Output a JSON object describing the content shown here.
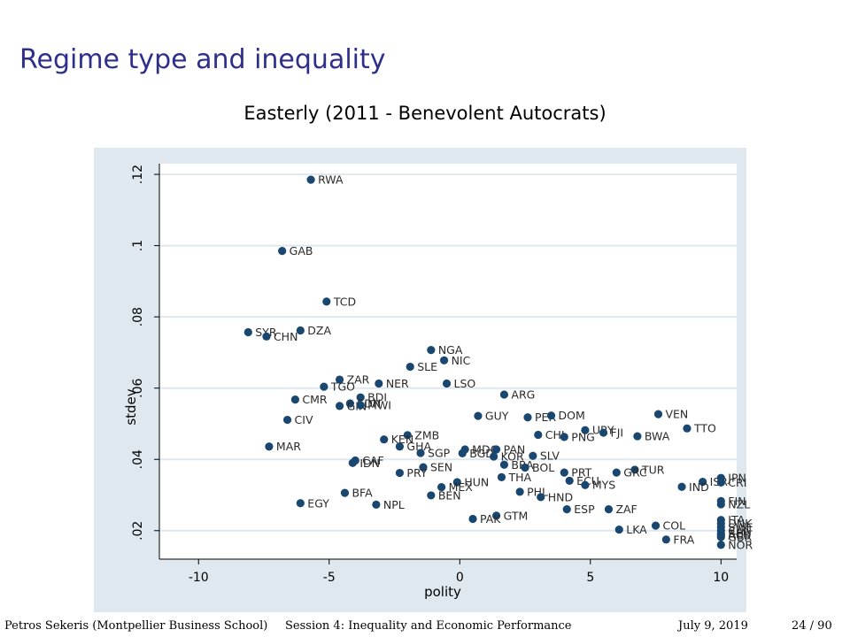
{
  "slide": {
    "title": "Regime type and inequality"
  },
  "footer": {
    "author": "Petros Sekeris  (Montpellier Business School)",
    "session": "Session 4: Inequality and Economic Performance",
    "date": "July 9, 2019",
    "page": "24 / 90"
  },
  "colors": {
    "slide_title": "#2e2e8c",
    "chart_background": "#dfe8ef",
    "grid": "#ffffff",
    "marker": "#1a476f"
  },
  "chart_data": {
    "type": "scatter",
    "title": "Easterly (2011 - Benevolent Autocrats)",
    "xlabel": "polity",
    "ylabel": "stdev",
    "xlim": [
      -11.5,
      10.6
    ],
    "ylim": [
      0.012,
      0.123
    ],
    "xticks": [
      -10,
      -5,
      0,
      5,
      10
    ],
    "xtick_labels": [
      "-10",
      "-5",
      "0",
      "5",
      "10"
    ],
    "yticks": [
      0.02,
      0.04,
      0.06,
      0.08,
      0.1,
      0.12
    ],
    "ytick_labels": [
      ".02",
      ".04",
      ".06",
      ".08",
      ".1",
      ".12"
    ],
    "grid": true,
    "points": [
      {
        "label": "RWA",
        "x": -5.7,
        "y": 0.1185
      },
      {
        "label": "GAB",
        "x": -6.8,
        "y": 0.0985
      },
      {
        "label": "TCD",
        "x": -5.1,
        "y": 0.0843
      },
      {
        "label": "SYR",
        "x": -8.1,
        "y": 0.0757
      },
      {
        "label": "CHN",
        "x": -7.4,
        "y": 0.0745
      },
      {
        "label": "DZA",
        "x": -6.1,
        "y": 0.0762
      },
      {
        "label": "NGA",
        "x": -1.1,
        "y": 0.0707
      },
      {
        "label": "NIC",
        "x": -0.6,
        "y": 0.0678
      },
      {
        "label": "SLE",
        "x": -1.9,
        "y": 0.066
      },
      {
        "label": "ZAR",
        "x": -4.6,
        "y": 0.0624
      },
      {
        "label": "TGO",
        "x": -5.2,
        "y": 0.0604
      },
      {
        "label": "NER",
        "x": -3.1,
        "y": 0.0613
      },
      {
        "label": "LSO",
        "x": -0.5,
        "y": 0.0613
      },
      {
        "label": "CMR",
        "x": -6.3,
        "y": 0.0568
      },
      {
        "label": "BDI",
        "x": -3.8,
        "y": 0.0574
      },
      {
        "label": "SDN",
        "x": -4.2,
        "y": 0.0557
      },
      {
        "label": "GIN",
        "x": -4.6,
        "y": 0.055
      },
      {
        "label": "MWI",
        "x": -3.8,
        "y": 0.0552
      },
      {
        "label": "ARG",
        "x": 1.7,
        "y": 0.0582
      },
      {
        "label": "CIV",
        "x": -6.6,
        "y": 0.0511
      },
      {
        "label": "GUY",
        "x": 0.7,
        "y": 0.0522
      },
      {
        "label": "PER",
        "x": 2.6,
        "y": 0.0518
      },
      {
        "label": "DOM",
        "x": 3.5,
        "y": 0.0523
      },
      {
        "label": "VEN",
        "x": 7.6,
        "y": 0.0527
      },
      {
        "label": "TTO",
        "x": 8.7,
        "y": 0.0487
      },
      {
        "label": "URY",
        "x": 4.8,
        "y": 0.0482
      },
      {
        "label": "FJI",
        "x": 5.5,
        "y": 0.0475
      },
      {
        "label": "CHL",
        "x": 3.0,
        "y": 0.0469
      },
      {
        "label": "PNG",
        "x": 4.0,
        "y": 0.0463
      },
      {
        "label": "BWA",
        "x": 6.8,
        "y": 0.0465
      },
      {
        "label": "ZMB",
        "x": -2.0,
        "y": 0.0468
      },
      {
        "label": "KEN",
        "x": -2.9,
        "y": 0.0456
      },
      {
        "label": "GHA",
        "x": -2.3,
        "y": 0.0436
      },
      {
        "label": "MAR",
        "x": -7.3,
        "y": 0.0436
      },
      {
        "label": "SGP",
        "x": -1.5,
        "y": 0.0418
      },
      {
        "label": "MDG",
        "x": 0.2,
        "y": 0.0428
      },
      {
        "label": "BGD",
        "x": 0.1,
        "y": 0.0417
      },
      {
        "label": "PAN",
        "x": 1.4,
        "y": 0.0428
      },
      {
        "label": "KOR",
        "x": 1.3,
        "y": 0.0408
      },
      {
        "label": "SLV",
        "x": 2.8,
        "y": 0.041
      },
      {
        "label": "CAF",
        "x": -4.0,
        "y": 0.0397
      },
      {
        "label": "IDN",
        "x": -4.1,
        "y": 0.039
      },
      {
        "label": "BRA",
        "x": 1.7,
        "y": 0.0385
      },
      {
        "label": "BOL",
        "x": 2.5,
        "y": 0.0377
      },
      {
        "label": "SEN",
        "x": -1.4,
        "y": 0.0378
      },
      {
        "label": "TUR",
        "x": 6.7,
        "y": 0.0371
      },
      {
        "label": "PRY",
        "x": -2.3,
        "y": 0.0362
      },
      {
        "label": "PRT",
        "x": 4.0,
        "y": 0.0363
      },
      {
        "label": "GRC",
        "x": 6.0,
        "y": 0.0363
      },
      {
        "label": "THA",
        "x": 1.6,
        "y": 0.035
      },
      {
        "label": "ISR",
        "x": 9.3,
        "y": 0.0337
      },
      {
        "label": "JPN",
        "x": 10.0,
        "y": 0.0348
      },
      {
        "label": "CRI",
        "x": 10.0,
        "y": 0.0335
      },
      {
        "label": "HUN",
        "x": -0.1,
        "y": 0.0336
      },
      {
        "label": "ECU",
        "x": 4.2,
        "y": 0.034
      },
      {
        "label": "MYS",
        "x": 4.8,
        "y": 0.0328
      },
      {
        "label": "IND",
        "x": 8.5,
        "y": 0.0323
      },
      {
        "label": "MEX",
        "x": -0.7,
        "y": 0.0322
      },
      {
        "label": "PHL",
        "x": 2.3,
        "y": 0.0309
      },
      {
        "label": "BFA",
        "x": -4.4,
        "y": 0.0306
      },
      {
        "label": "BEN",
        "x": -1.1,
        "y": 0.0299
      },
      {
        "label": "HND",
        "x": 3.1,
        "y": 0.0294
      },
      {
        "label": "EGY",
        "x": -6.1,
        "y": 0.0277
      },
      {
        "label": "NPL",
        "x": -3.2,
        "y": 0.0273
      },
      {
        "label": "FIN",
        "x": 10.0,
        "y": 0.0283
      },
      {
        "label": "NZL",
        "x": 10.0,
        "y": 0.0274
      },
      {
        "label": "ESP",
        "x": 4.1,
        "y": 0.026
      },
      {
        "label": "ZAF",
        "x": 5.7,
        "y": 0.026
      },
      {
        "label": "GTM",
        "x": 1.4,
        "y": 0.0242
      },
      {
        "label": "PAK",
        "x": 0.5,
        "y": 0.0233
      },
      {
        "label": "ITA",
        "x": 10.0,
        "y": 0.023
      },
      {
        "label": "DNK",
        "x": 10.0,
        "y": 0.022
      },
      {
        "label": "COL",
        "x": 7.5,
        "y": 0.0214
      },
      {
        "label": "SWE",
        "x": 10.0,
        "y": 0.021
      },
      {
        "label": "LKA",
        "x": 6.1,
        "y": 0.0203
      },
      {
        "label": "CAN",
        "x": 10.0,
        "y": 0.02
      },
      {
        "label": "BEL",
        "x": 10.0,
        "y": 0.0192
      },
      {
        "label": "AUS",
        "x": 10.0,
        "y": 0.0187
      },
      {
        "label": "GBR",
        "x": 10.0,
        "y": 0.0182
      },
      {
        "label": "FRA",
        "x": 7.9,
        "y": 0.0175
      },
      {
        "label": "NOR",
        "x": 10.0,
        "y": 0.016
      }
    ]
  }
}
